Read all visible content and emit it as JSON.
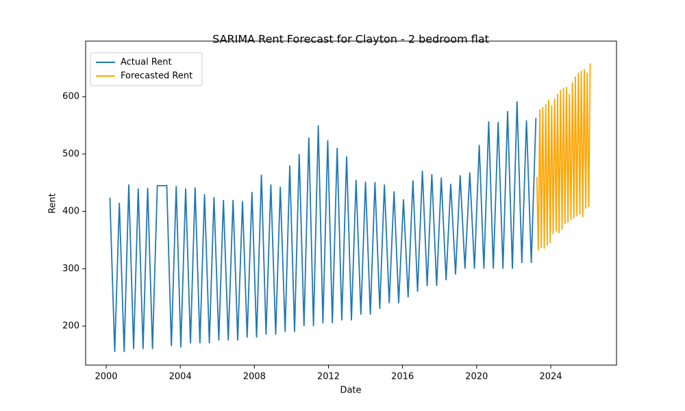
{
  "chart_data": {
    "type": "line",
    "title": "SARIMA Rent Forecast for Clayton - 2 bedroom flat",
    "xlabel": "Date",
    "ylabel": "Rent",
    "xlim": [
      1998.89,
      2027.55
    ],
    "xticks": [
      2000,
      2004,
      2008,
      2012,
      2016,
      2020,
      2024
    ],
    "ylim": [
      132,
      697
    ],
    "yticks": [
      200,
      300,
      400,
      500,
      600
    ],
    "grid": false,
    "legend": "upper left",
    "series": [
      {
        "name": "Actual Rent",
        "color": "#1f77b4",
        "x": [
          2000.2,
          2000.46,
          2000.71,
          2000.97,
          2001.22,
          2001.48,
          2001.73,
          2001.99,
          2002.24,
          2002.5,
          2002.76,
          2003.01,
          2003.27,
          2003.52,
          2003.78,
          2004.03,
          2004.29,
          2004.55,
          2004.8,
          2005.06,
          2005.31,
          2005.57,
          2005.82,
          2006.08,
          2006.33,
          2006.59,
          2006.85,
          2007.1,
          2007.36,
          2007.61,
          2007.87,
          2008.12,
          2008.38,
          2008.63,
          2008.89,
          2009.15,
          2009.4,
          2009.66,
          2009.91,
          2010.17,
          2010.42,
          2010.68,
          2010.94,
          2011.19,
          2011.45,
          2011.7,
          2011.96,
          2012.21,
          2012.47,
          2012.72,
          2012.98,
          2013.24,
          2013.49,
          2013.75,
          2014.0,
          2014.26,
          2014.51,
          2014.77,
          2015.02,
          2015.28,
          2015.54,
          2015.79,
          2016.05,
          2016.3,
          2016.56,
          2016.81,
          2017.07,
          2017.33,
          2017.58,
          2017.84,
          2018.09,
          2018.35,
          2018.6,
          2018.86,
          2019.11,
          2019.37,
          2019.63,
          2019.88,
          2020.14,
          2020.39,
          2020.65,
          2020.9,
          2021.16,
          2021.42,
          2021.67,
          2021.93,
          2022.18,
          2022.44,
          2022.69,
          2022.95,
          2023.2
        ],
        "values": [
          424,
          155,
          415,
          155,
          447,
          160,
          440,
          160,
          441,
          160,
          445,
          445,
          445,
          165,
          444,
          163,
          440,
          170,
          442,
          170,
          430,
          170,
          425,
          175,
          420,
          175,
          420,
          175,
          418,
          180,
          434,
          180,
          464,
          185,
          447,
          185,
          443,
          190,
          480,
          190,
          500,
          200,
          529,
          200,
          550,
          205,
          524,
          205,
          511,
          210,
          496,
          210,
          455,
          220,
          452,
          220,
          451,
          230,
          447,
          240,
          435,
          240,
          421,
          250,
          454,
          260,
          471,
          270,
          465,
          270,
          459,
          280,
          448,
          290,
          463,
          300,
          468,
          300,
          516,
          300,
          557,
          300,
          556,
          300,
          575,
          300,
          592,
          310,
          559,
          310,
          563
        ]
      },
      {
        "name": "Forecasted Rent",
        "color": "#ffa500",
        "x": [
          2023.25,
          2023.33,
          2023.41,
          2023.49,
          2023.57,
          2023.65,
          2023.73,
          2023.81,
          2023.89,
          2023.97,
          2024.05,
          2024.13,
          2024.21,
          2024.29,
          2024.37,
          2024.45,
          2024.53,
          2024.61,
          2024.69,
          2024.77,
          2024.85,
          2024.93,
          2025.01,
          2025.09,
          2025.17,
          2025.25,
          2025.33,
          2025.41,
          2025.49,
          2025.57,
          2025.65,
          2025.73,
          2025.81,
          2025.89,
          2025.97,
          2026.05,
          2026.13
        ],
        "values": [
          460,
          332,
          578,
          336,
          582,
          335,
          587,
          340,
          595,
          345,
          585,
          360,
          597,
          365,
          605,
          362,
          612,
          368,
          615,
          378,
          617,
          380,
          605,
          385,
          625,
          388,
          635,
          392,
          642,
          395,
          645,
          390,
          648,
          405,
          642,
          408,
          658
        ]
      }
    ]
  }
}
